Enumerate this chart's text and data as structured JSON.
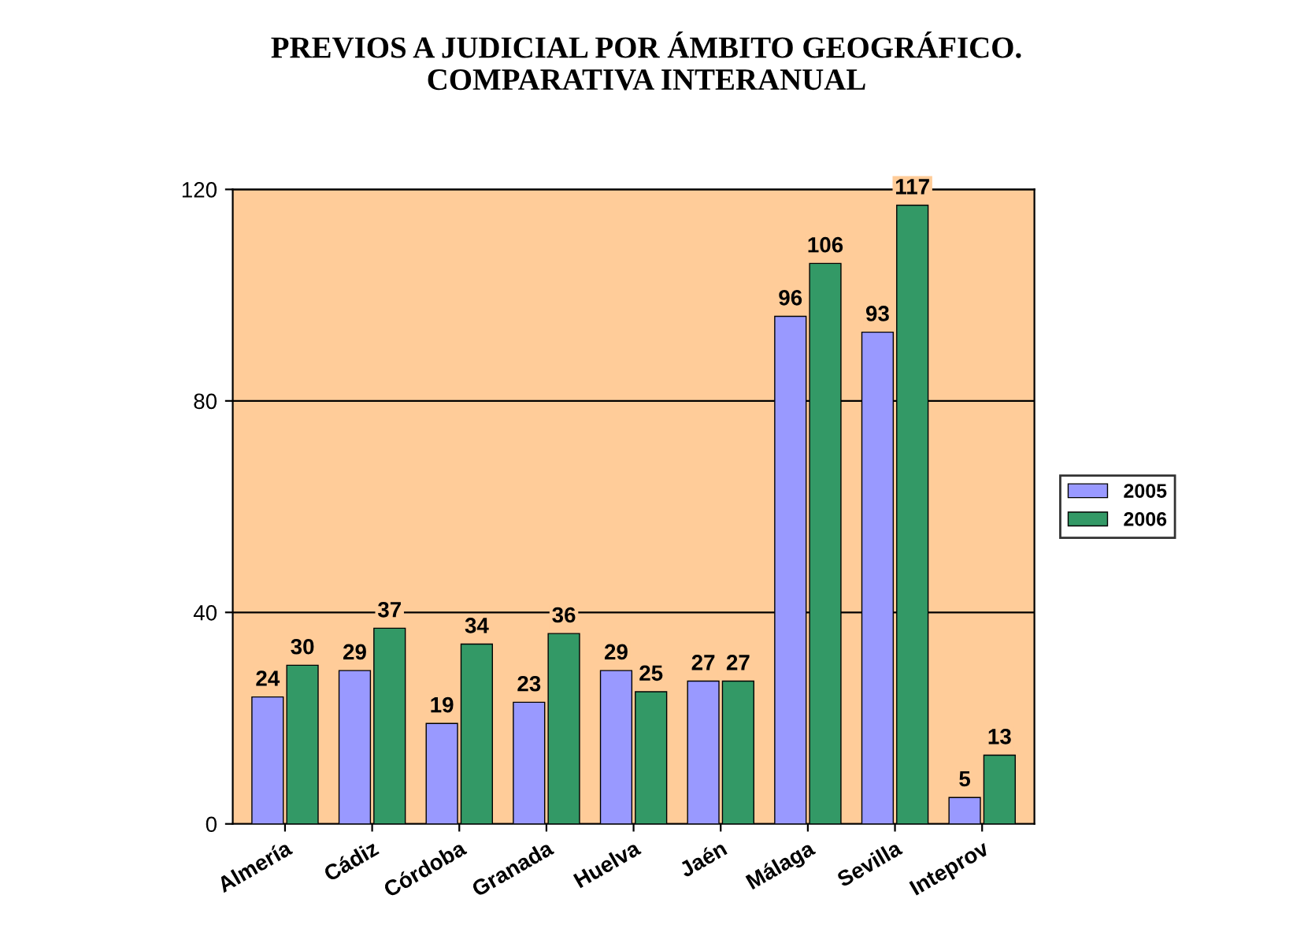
{
  "chart_data": {
    "type": "bar",
    "title": "PREVIOS A JUDICIAL POR ÁMBITO GEOGRÁFICO.\nCOMPARATIVA INTERANUAL",
    "categories": [
      "Almería",
      "Cádiz",
      "Córdoba",
      "Granada",
      "Huelva",
      "Jaén",
      "Málaga",
      "Sevilla",
      "Inteprov"
    ],
    "series": [
      {
        "name": "2005",
        "color": "#9999ff",
        "values": [
          24,
          29,
          19,
          23,
          29,
          27,
          96,
          93,
          5
        ]
      },
      {
        "name": "2006",
        "color": "#339966",
        "values": [
          30,
          37,
          34,
          36,
          25,
          27,
          106,
          117,
          13
        ]
      }
    ],
    "ylim": [
      0,
      120
    ],
    "yticks": [
      0,
      40,
      80,
      120
    ],
    "grid": "y",
    "legend": "right",
    "data_labels": true
  }
}
